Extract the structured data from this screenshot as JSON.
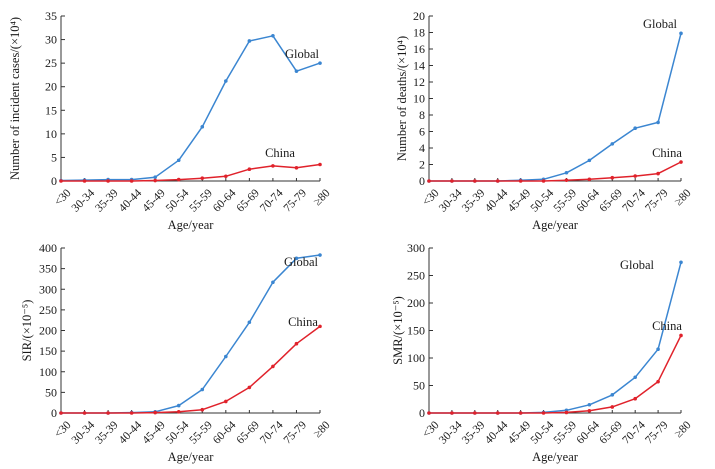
{
  "figure": {
    "categories": [
      "<30",
      "30-34",
      "35-39",
      "40-44",
      "45-49",
      "50-54",
      "55-59",
      "60-64",
      "65-69",
      "70-74",
      "75-79",
      "≥80"
    ],
    "colors": {
      "global": "#3b86d1",
      "china": "#e0222b",
      "axis": "#333333"
    }
  },
  "chart_data": [
    {
      "type": "line",
      "id": "panel-incident-cases",
      "title": "",
      "xlabel": "Age/year",
      "ylabel": "Number of incident cases/(×10⁴)",
      "ylim": [
        0,
        35
      ],
      "yticks": [
        0,
        5,
        10,
        15,
        20,
        25,
        30,
        35
      ],
      "categories": [
        "<30",
        "30-34",
        "35-39",
        "40-44",
        "45-49",
        "50-54",
        "55-59",
        "60-64",
        "65-69",
        "70-74",
        "75-79",
        "≥80"
      ],
      "series": [
        {
          "name": "Global",
          "values": [
            0.1,
            0.2,
            0.3,
            0.3,
            0.8,
            4.4,
            11.5,
            21.2,
            29.7,
            30.8,
            23.3,
            25.0
          ]
        },
        {
          "name": "China",
          "values": [
            0.0,
            0.0,
            0.0,
            0.0,
            0.1,
            0.3,
            0.6,
            1.0,
            2.5,
            3.2,
            2.8,
            3.5
          ]
        }
      ]
    },
    {
      "type": "line",
      "id": "panel-deaths",
      "title": "",
      "xlabel": "Age/year",
      "ylabel": "Number of deaths/(×10⁴)",
      "ylim": [
        0,
        20
      ],
      "yticks": [
        0,
        2,
        4,
        6,
        8,
        10,
        12,
        14,
        16,
        18,
        20
      ],
      "categories": [
        "<30",
        "30-34",
        "35-39",
        "40-44",
        "45-49",
        "50-54",
        "55-59",
        "60-64",
        "65-69",
        "70-74",
        "75-79",
        "≥80"
      ],
      "series": [
        {
          "name": "Global",
          "values": [
            0.0,
            0.0,
            0.0,
            0.0,
            0.1,
            0.2,
            1.0,
            2.5,
            4.5,
            6.4,
            7.1,
            17.9
          ]
        },
        {
          "name": "China",
          "values": [
            0.0,
            0.0,
            0.0,
            0.0,
            0.0,
            0.0,
            0.1,
            0.2,
            0.4,
            0.6,
            0.9,
            2.3
          ]
        }
      ]
    },
    {
      "type": "line",
      "id": "panel-sir",
      "title": "",
      "xlabel": "Age/year",
      "ylabel": "SIR/(×10⁻⁵)",
      "ylim": [
        0,
        400
      ],
      "yticks": [
        0,
        50,
        100,
        150,
        200,
        250,
        300,
        350,
        400
      ],
      "categories": [
        "<30",
        "30-34",
        "35-39",
        "40-44",
        "45-49",
        "50-54",
        "55-59",
        "60-64",
        "65-69",
        "70-74",
        "75-79",
        "≥80"
      ],
      "series": [
        {
          "name": "Global",
          "values": [
            0,
            0,
            0,
            1,
            3,
            18,
            57,
            137,
            220,
            317,
            375,
            383
          ]
        },
        {
          "name": "China",
          "values": [
            0,
            0,
            0,
            0,
            1,
            3,
            8,
            28,
            62,
            113,
            168,
            210
          ]
        }
      ]
    },
    {
      "type": "line",
      "id": "panel-smr",
      "title": "",
      "xlabel": "Age/year",
      "ylabel": "SMR/(×10⁻⁵)",
      "ylim": [
        0,
        300
      ],
      "yticks": [
        0,
        50,
        100,
        150,
        200,
        250,
        300
      ],
      "categories": [
        "<30",
        "30-34",
        "35-39",
        "40-44",
        "45-49",
        "50-54",
        "55-59",
        "60-64",
        "65-69",
        "70-74",
        "75-79",
        "≥80"
      ],
      "series": [
        {
          "name": "Global",
          "values": [
            0,
            0,
            0,
            0,
            0,
            1,
            5,
            15,
            33,
            65,
            116,
            274
          ]
        },
        {
          "name": "China",
          "values": [
            0,
            0,
            0,
            0,
            0,
            0,
            1,
            4,
            11,
            26,
            57,
            141
          ]
        }
      ]
    }
  ]
}
